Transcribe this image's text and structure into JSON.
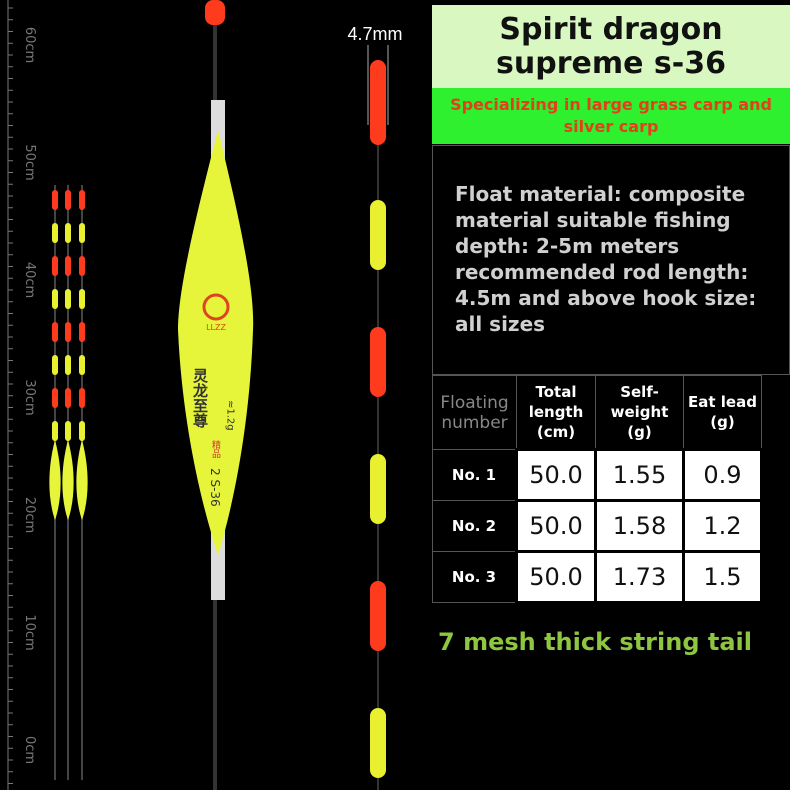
{
  "ruler": {
    "labels": [
      "60cm",
      "50cm",
      "40cm",
      "30cm",
      "20cm",
      "10cm",
      "0cm"
    ]
  },
  "float": {
    "brand": "LLZZ",
    "name": "灵龙至尊",
    "weight": "≈1.2g",
    "grade": "精品",
    "model": "2 S-36"
  },
  "tail": {
    "diameter": "4.7mm",
    "caption": "7 mesh thick string tail"
  },
  "header": {
    "title": "Spirit dragon supreme s-36",
    "subtitle": "Specializing in large grass carp and silver carp"
  },
  "description": "Float material: composite material suitable fishing depth: 2-5m meters recommended rod length: 4.5m and above hook size: all sizes",
  "table": {
    "columns": [
      "Floating number",
      "Total length (cm)",
      "Self-weight (g)",
      "Eat lead (g)"
    ],
    "rows": [
      [
        "No. 1",
        "50.0",
        "1.55",
        "0.9"
      ],
      [
        "No. 2",
        "50.0",
        "1.58",
        "1.2"
      ],
      [
        "No. 3",
        "50.0",
        "1.73",
        "1.5"
      ]
    ]
  }
}
